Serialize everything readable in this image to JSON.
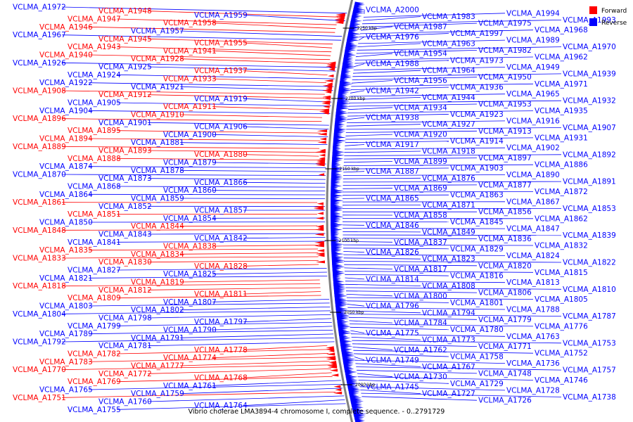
{
  "title": "Vibrio cholerae LMA3894-4 chromosome I, complete sequence. - 0..2791729",
  "legend": [
    {
      "label": "Forward",
      "color": "#ff0000"
    },
    {
      "label": "Reverse",
      "color": "#0000ff"
    }
  ],
  "colors": {
    "forward": "#ff0000",
    "reverse": "#0000ff",
    "backbone": "#808080"
  },
  "ticks": [
    "2250 kbp",
    "2200 kbp",
    "2150 kbp",
    "2100 kbp",
    "2050 kbp",
    "2000 kbp"
  ],
  "left_genes": [
    {
      "label": "VCLMA_A1972",
      "strand": "reverse"
    },
    {
      "label": "VCLMA_A1948",
      "strand": "forward"
    },
    {
      "label": "VCLMA_A1959",
      "strand": "reverse"
    },
    {
      "label": "VCLMA_A1947",
      "strand": "forward"
    },
    {
      "label": "VCLMA_A1958",
      "strand": "forward"
    },
    {
      "label": "VCLMA_A1946",
      "strand": "forward"
    },
    {
      "label": "VCLMA_A1957",
      "strand": "reverse"
    },
    {
      "label": "VCLMA_A1967",
      "strand": "reverse"
    },
    {
      "label": "VCLMA_A1945",
      "strand": "forward"
    },
    {
      "label": "VCLMA_A1955",
      "strand": "forward"
    },
    {
      "label": "VCLMA_A1943",
      "strand": "forward"
    },
    {
      "label": "VCLMA_A1941",
      "strand": "forward"
    },
    {
      "label": "VCLMA_A1940",
      "strand": "forward"
    },
    {
      "label": "VCLMA_A1928",
      "strand": "forward"
    },
    {
      "label": "VCLMA_A1926",
      "strand": "reverse"
    },
    {
      "label": "VCLMA_A1925",
      "strand": "reverse"
    },
    {
      "label": "VCLMA_A1937",
      "strand": "forward"
    },
    {
      "label": "VCLMA_A1924",
      "strand": "reverse"
    },
    {
      "label": "VCLMA_A1933",
      "strand": "forward"
    },
    {
      "label": "VCLMA_A1922",
      "strand": "reverse"
    },
    {
      "label": "VCLMA_A1921",
      "strand": "reverse"
    },
    {
      "label": "VCLMA_A1908",
      "strand": "forward"
    },
    {
      "label": "VCLMA_A1912",
      "strand": "forward"
    },
    {
      "label": "VCLMA_A1919",
      "strand": "reverse"
    },
    {
      "label": "VCLMA_A1905",
      "strand": "reverse"
    },
    {
      "label": "VCLMA_A1911",
      "strand": "forward"
    },
    {
      "label": "VCLMA_A1904",
      "strand": "reverse"
    },
    {
      "label": "VCLMA_A1910",
      "strand": "forward"
    },
    {
      "label": "VCLMA_A1896",
      "strand": "forward"
    },
    {
      "label": "VCLMA_A1901",
      "strand": "reverse"
    },
    {
      "label": "VCLMA_A1906",
      "strand": "reverse"
    },
    {
      "label": "VCLMA_A1895",
      "strand": "forward"
    },
    {
      "label": "VCLMA_A1900",
      "strand": "reverse"
    },
    {
      "label": "VCLMA_A1894",
      "strand": "forward"
    },
    {
      "label": "VCLMA_A1881",
      "strand": "reverse"
    },
    {
      "label": "VCLMA_A1889",
      "strand": "forward"
    },
    {
      "label": "VCLMA_A1893",
      "strand": "forward"
    },
    {
      "label": "VCLMA_A1880",
      "strand": "forward"
    },
    {
      "label": "VCLMA_A1888",
      "strand": "forward"
    },
    {
      "label": "VCLMA_A1879",
      "strand": "reverse"
    },
    {
      "label": "VCLMA_A1874",
      "strand": "reverse"
    },
    {
      "label": "VCLMA_A1878",
      "strand": "reverse"
    },
    {
      "label": "VCLMA_A1870",
      "strand": "reverse"
    },
    {
      "label": "VCLMA_A1873",
      "strand": "reverse"
    },
    {
      "label": "VCLMA_A1866",
      "strand": "reverse"
    },
    {
      "label": "VCLMA_A1868",
      "strand": "reverse"
    },
    {
      "label": "VCLMA_A1860",
      "strand": "reverse"
    },
    {
      "label": "VCLMA_A1864",
      "strand": "reverse"
    },
    {
      "label": "VCLMA_A1859",
      "strand": "reverse"
    },
    {
      "label": "VCLMA_A1861",
      "strand": "forward"
    },
    {
      "label": "VCLMA_A1852",
      "strand": "reverse"
    },
    {
      "label": "VCLMA_A1857",
      "strand": "reverse"
    },
    {
      "label": "VCLMA_A1851",
      "strand": "forward"
    },
    {
      "label": "VCLMA_A1854",
      "strand": "reverse"
    },
    {
      "label": "VCLMA_A1850",
      "strand": "reverse"
    },
    {
      "label": "VCLMA_A1844",
      "strand": "forward"
    },
    {
      "label": "VCLMA_A1848",
      "strand": "forward"
    },
    {
      "label": "VCLMA_A1843",
      "strand": "reverse"
    },
    {
      "label": "VCLMA_A1842",
      "strand": "reverse"
    },
    {
      "label": "VCLMA_A1841",
      "strand": "reverse"
    },
    {
      "label": "VCLMA_A1838",
      "strand": "forward"
    },
    {
      "label": "VCLMA_A1835",
      "strand": "forward"
    },
    {
      "label": "VCLMA_A1834",
      "strand": "forward"
    },
    {
      "label": "VCLMA_A1833",
      "strand": "forward"
    },
    {
      "label": "VCLMA_A1830",
      "strand": "forward"
    },
    {
      "label": "VCLMA_A1828",
      "strand": "forward"
    },
    {
      "label": "VCLMA_A1827",
      "strand": "reverse"
    },
    {
      "label": "VCLMA_A1825",
      "strand": "reverse"
    },
    {
      "label": "VCLMA_A1821",
      "strand": "reverse"
    },
    {
      "label": "VCLMA_A1819",
      "strand": "forward"
    },
    {
      "label": "VCLMA_A1818",
      "strand": "forward"
    },
    {
      "label": "VCLMA_A1812",
      "strand": "forward"
    },
    {
      "label": "VCLMA_A1811",
      "strand": "forward"
    },
    {
      "label": "VCLMA_A1809",
      "strand": "forward"
    },
    {
      "label": "VCLMA_A1807",
      "strand": "reverse"
    },
    {
      "label": "VCLMA_A1803",
      "strand": "reverse"
    },
    {
      "label": "VCLMA_A1802",
      "strand": "reverse"
    },
    {
      "label": "VCLMA_A1804",
      "strand": "reverse"
    },
    {
      "label": "VCLMA_A1798",
      "strand": "reverse"
    },
    {
      "label": "VCLMA_A1797",
      "strand": "reverse"
    },
    {
      "label": "VCLMA_A1799",
      "strand": "reverse"
    },
    {
      "label": "VCLMA_A1790",
      "strand": "reverse"
    },
    {
      "label": "VCLMA_A1789",
      "strand": "reverse"
    },
    {
      "label": "VCLMA_A1791",
      "strand": "reverse"
    },
    {
      "label": "VCLMA_A1792",
      "strand": "reverse"
    },
    {
      "label": "VCLMA_A1781",
      "strand": "reverse"
    },
    {
      "label": "VCLMA_A1778",
      "strand": "forward"
    },
    {
      "label": "VCLMA_A1782",
      "strand": "forward"
    },
    {
      "label": "VCLMA_A1774",
      "strand": "forward"
    },
    {
      "label": "VCLMA_A1783",
      "strand": "forward"
    },
    {
      "label": "VCLMA_A1777",
      "strand": "forward"
    },
    {
      "label": "VCLMA_A1770",
      "strand": "forward"
    },
    {
      "label": "VCLMA_A1772",
      "strand": "forward"
    },
    {
      "label": "VCLMA_A1768",
      "strand": "forward"
    },
    {
      "label": "VCLMA_A1769",
      "strand": "forward"
    },
    {
      "label": "VCLMA_A1761",
      "strand": "reverse"
    },
    {
      "label": "VCLMA_A1765",
      "strand": "reverse"
    },
    {
      "label": "VCLMA_A1759",
      "strand": "reverse"
    },
    {
      "label": "VCLMA_A1751",
      "strand": "forward"
    },
    {
      "label": "VCLMA_A1760",
      "strand": "reverse"
    },
    {
      "label": "VCLMA_A1764",
      "strand": "reverse"
    },
    {
      "label": "VCLMA_A1755",
      "strand": "reverse"
    }
  ],
  "right_genes": [
    {
      "label": "VCLMA_A2000"
    },
    {
      "label": "VCLMA_A1994"
    },
    {
      "label": "VCLMA_A1983"
    },
    {
      "label": "VCLMA_A1993"
    },
    {
      "label": "VCLMA_A1975"
    },
    {
      "label": "VCLMA_A1987"
    },
    {
      "label": "VCLMA_A1968"
    },
    {
      "label": "VCLMA_A1997"
    },
    {
      "label": "VCLMA_A1976"
    },
    {
      "label": "VCLMA_A1989"
    },
    {
      "label": "VCLMA_A1963"
    },
    {
      "label": "VCLMA_A1970"
    },
    {
      "label": "VCLMA_A1982"
    },
    {
      "label": "VCLMA_A1954"
    },
    {
      "label": "VCLMA_A1962"
    },
    {
      "label": "VCLMA_A1973"
    },
    {
      "label": "VCLMA_A1988"
    },
    {
      "label": "VCLMA_A1949"
    },
    {
      "label": "VCLMA_A1964"
    },
    {
      "label": "VCLMA_A1939"
    },
    {
      "label": "VCLMA_A1950"
    },
    {
      "label": "VCLMA_A1956"
    },
    {
      "label": "VCLMA_A1971"
    },
    {
      "label": "VCLMA_A1936"
    },
    {
      "label": "VCLMA_A1942"
    },
    {
      "label": "VCLMA_A1965"
    },
    {
      "label": "VCLMA_A1944"
    },
    {
      "label": "VCLMA_A1932"
    },
    {
      "label": "VCLMA_A1953"
    },
    {
      "label": "VCLMA_A1934"
    },
    {
      "label": "VCLMA_A1935"
    },
    {
      "label": "VCLMA_A1923"
    },
    {
      "label": "VCLMA_A1938"
    },
    {
      "label": "VCLMA_A1916"
    },
    {
      "label": "VCLMA_A1927"
    },
    {
      "label": "VCLMA_A1907"
    },
    {
      "label": "VCLMA_A1913"
    },
    {
      "label": "VCLMA_A1920"
    },
    {
      "label": "VCLMA_A1931"
    },
    {
      "label": "VCLMA_A1914"
    },
    {
      "label": "VCLMA_A1917"
    },
    {
      "label": "VCLMA_A1902"
    },
    {
      "label": "VCLMA_A1918"
    },
    {
      "label": "VCLMA_A1892"
    },
    {
      "label": "VCLMA_A1897"
    },
    {
      "label": "VCLMA_A1899"
    },
    {
      "label": "VCLMA_A1886"
    },
    {
      "label": "VCLMA_A1903"
    },
    {
      "label": "VCLMA_A1887"
    },
    {
      "label": "VCLMA_A1890"
    },
    {
      "label": "VCLMA_A1876"
    },
    {
      "label": "VCLMA_A1891"
    },
    {
      "label": "VCLMA_A1877"
    },
    {
      "label": "VCLMA_A1869"
    },
    {
      "label": "VCLMA_A1872"
    },
    {
      "label": "VCLMA_A1863"
    },
    {
      "label": "VCLMA_A1865"
    },
    {
      "label": "VCLMA_A1867"
    },
    {
      "label": "VCLMA_A1871"
    },
    {
      "label": "VCLMA_A1853"
    },
    {
      "label": "VCLMA_A1856"
    },
    {
      "label": "VCLMA_A1858"
    },
    {
      "label": "VCLMA_A1862"
    },
    {
      "label": "VCLMA_A1845"
    },
    {
      "label": "VCLMA_A1846"
    },
    {
      "label": "VCLMA_A1847"
    },
    {
      "label": "VCLMA_A1849"
    },
    {
      "label": "VCLMA_A1839"
    },
    {
      "label": "VCLMA_A1836"
    },
    {
      "label": "VCLMA_A1837"
    },
    {
      "label": "VCLMA_A1832"
    },
    {
      "label": "VCLMA_A1829"
    },
    {
      "label": "VCLMA_A1826"
    },
    {
      "label": "VCLMA_A1824"
    },
    {
      "label": "VCLMA_A1823"
    },
    {
      "label": "VCLMA_A1822"
    },
    {
      "label": "VCLMA_A1820"
    },
    {
      "label": "VCLMA_A1817"
    },
    {
      "label": "VCLMA_A1815"
    },
    {
      "label": "VCLMA_A1816"
    },
    {
      "label": "VCLMA_A1814"
    },
    {
      "label": "VCLMA_A1813"
    },
    {
      "label": "VCLMA_A1808"
    },
    {
      "label": "VCLMA_A1810"
    },
    {
      "label": "VCLMA_A1806"
    },
    {
      "label": "VCLMA_A1800"
    },
    {
      "label": "VCLMA_A1805"
    },
    {
      "label": "VCLMA_A1801"
    },
    {
      "label": "VCLMA_A1796"
    },
    {
      "label": "VCLMA_A1788"
    },
    {
      "label": "VCLMA_A1794"
    },
    {
      "label": "VCLMA_A1787"
    },
    {
      "label": "VCLMA_A1779"
    },
    {
      "label": "VCLMA_A1784"
    },
    {
      "label": "VCLMA_A1776"
    },
    {
      "label": "VCLMA_A1780"
    },
    {
      "label": "VCLMA_A1775"
    },
    {
      "label": "VCLMA_A1763"
    },
    {
      "label": "VCLMA_A1773"
    },
    {
      "label": "VCLMA_A1753"
    },
    {
      "label": "VCLMA_A1771"
    },
    {
      "label": "VCLMA_A1762"
    },
    {
      "label": "VCLMA_A1752"
    },
    {
      "label": "VCLMA_A1758"
    },
    {
      "label": "VCLMA_A1749"
    },
    {
      "label": "VCLMA_A1736"
    },
    {
      "label": "VCLMA_A1767"
    },
    {
      "label": "VCLMA_A1757"
    },
    {
      "label": "VCLMA_A1748"
    },
    {
      "label": "VCLMA_A1730"
    },
    {
      "label": "VCLMA_A1746"
    },
    {
      "label": "VCLMA_A1729"
    },
    {
      "label": "VCLMA_A1745"
    },
    {
      "label": "VCLMA_A1728"
    },
    {
      "label": "VCLMA_A1727"
    },
    {
      "label": "VCLMA_A1738"
    },
    {
      "label": "VCLMA_A1726"
    }
  ]
}
